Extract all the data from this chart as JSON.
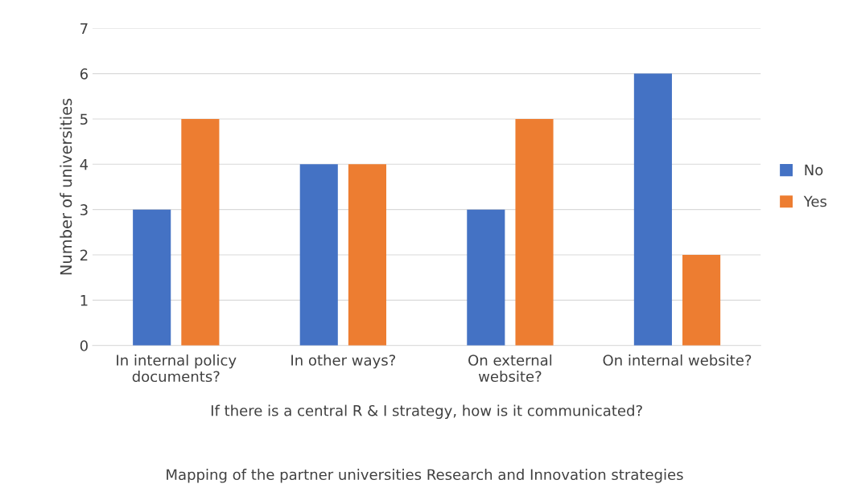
{
  "chart_data": {
    "type": "bar",
    "ylabel": "Number of universities",
    "xlabel": "If there is a central R & I strategy, how is it communicated?",
    "categories": [
      "In internal policy\ndocuments?",
      "In other ways?",
      "On external\nwebsite?",
      "On internal website?"
    ],
    "series": [
      {
        "name": "No",
        "color": "#4472c4",
        "values": [
          3,
          4,
          3,
          6
        ]
      },
      {
        "name": "Yes",
        "color": "#ed7d31",
        "values": [
          5,
          4,
          5,
          2
        ]
      }
    ],
    "ylim": [
      0,
      7
    ],
    "yticks": [
      0,
      1,
      2,
      3,
      4,
      5,
      6,
      7
    ],
    "grid": "y",
    "legend": "right",
    "annotations": [
      "Mapping of the partner universities Research and Innovation strategies"
    ]
  }
}
